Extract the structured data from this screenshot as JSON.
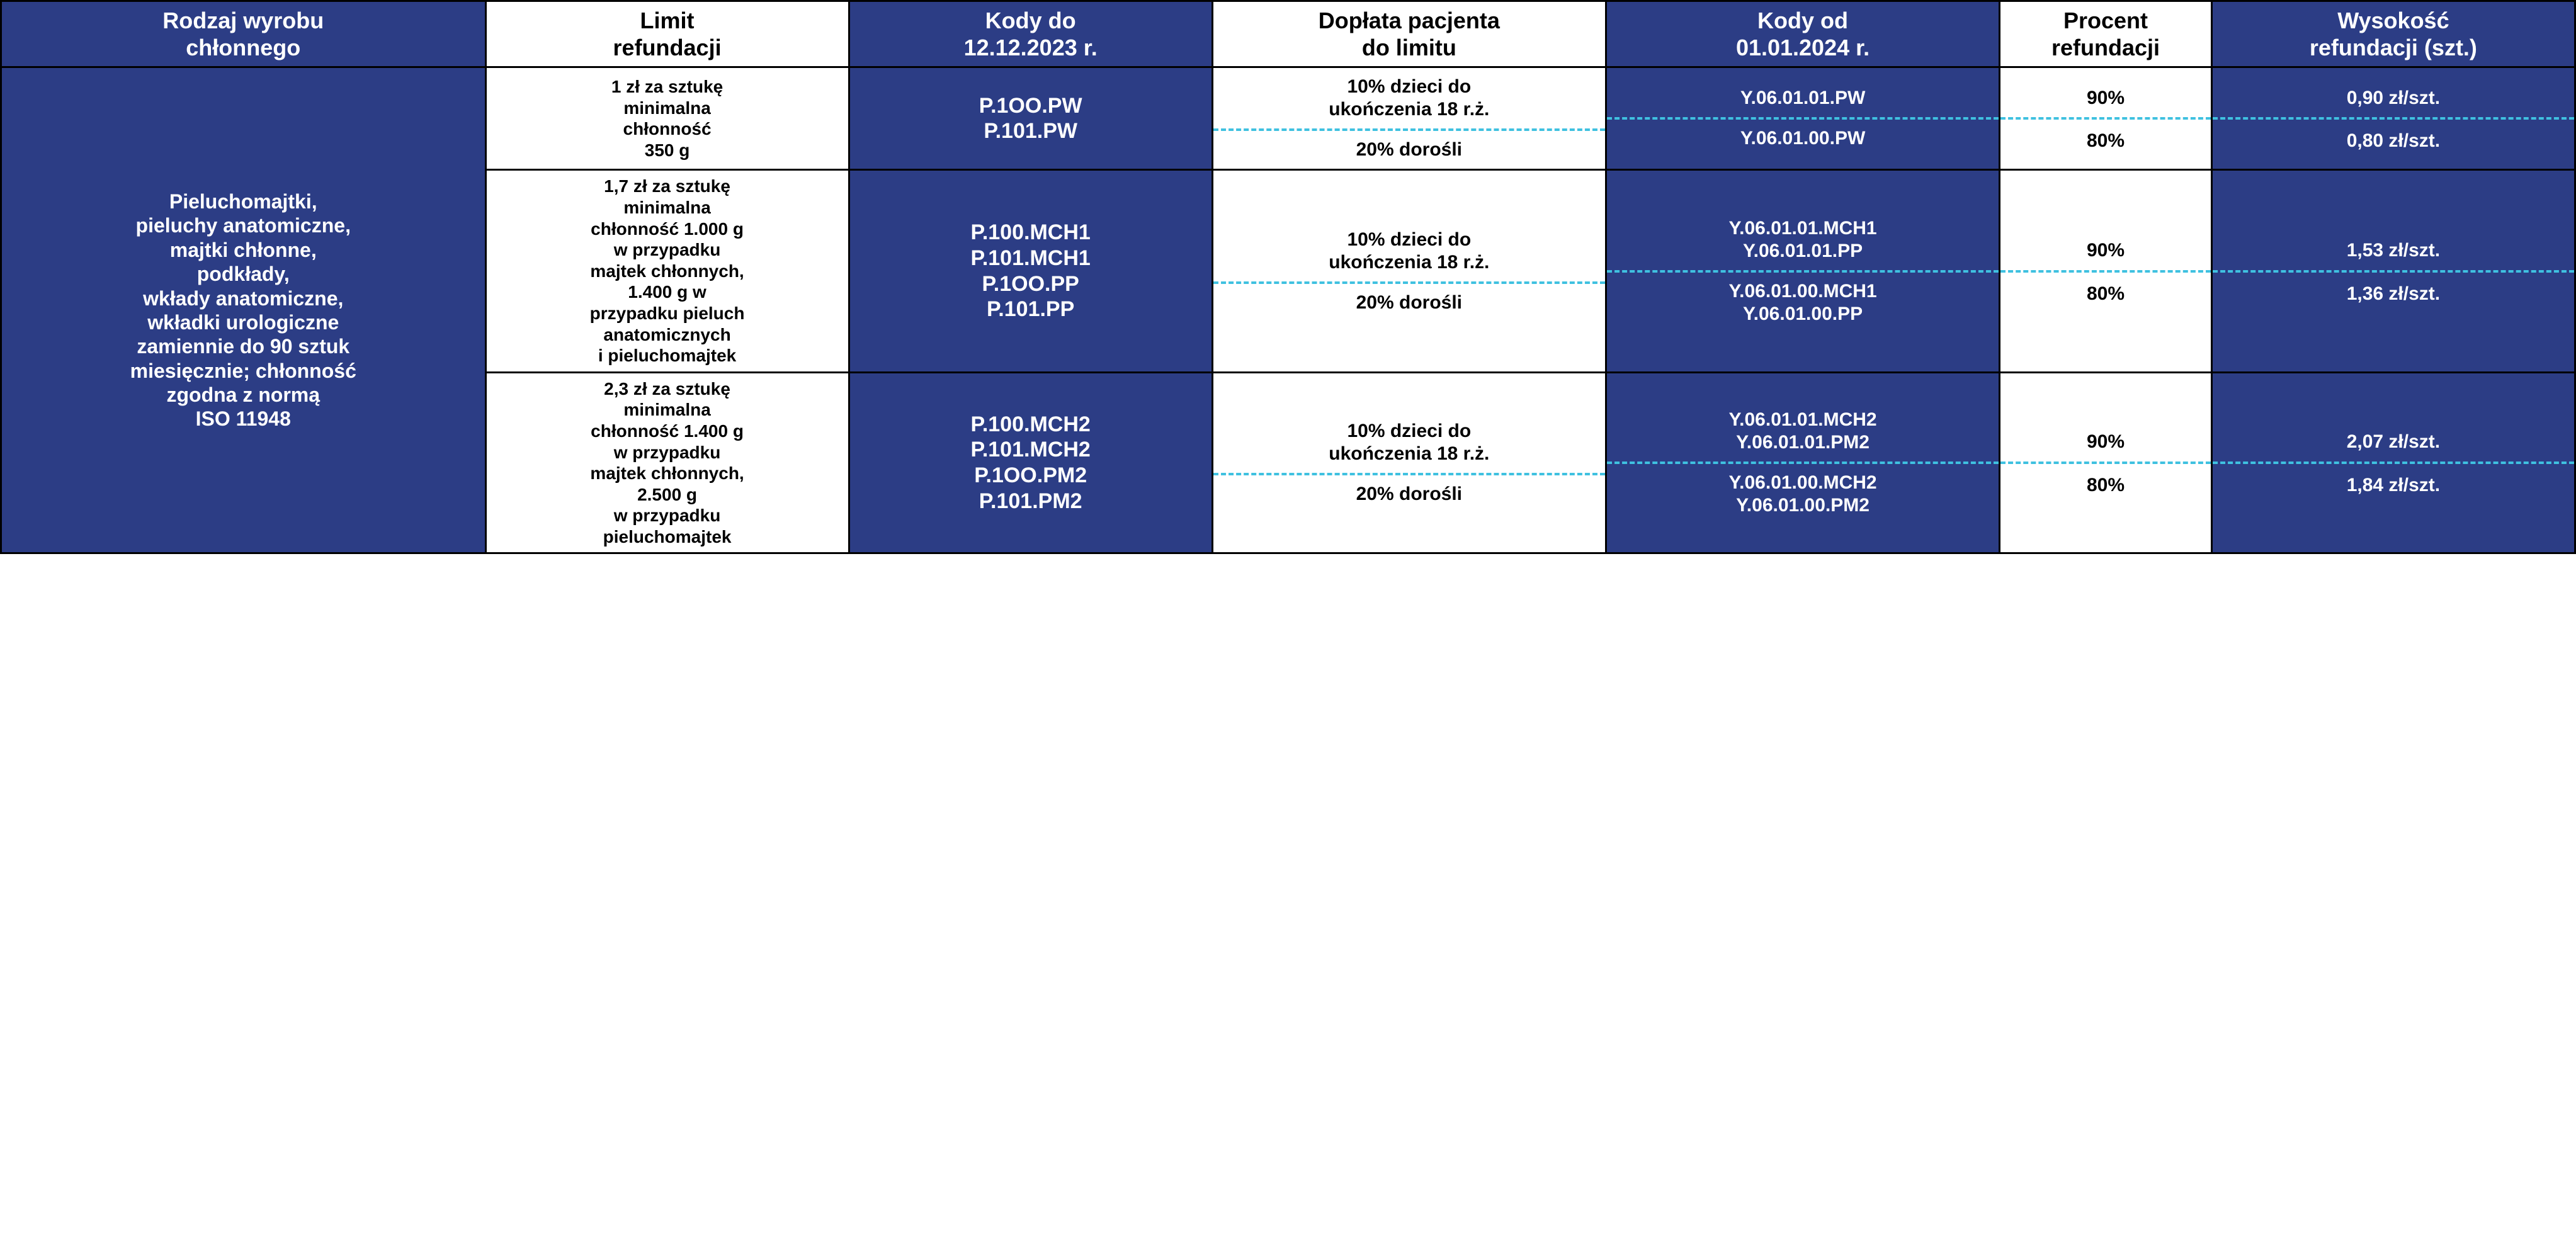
{
  "colors": {
    "blue": "#2c3d85",
    "dash": "#3fc1e0",
    "black": "#000000",
    "white": "#ffffff"
  },
  "colwidths_pct": [
    16,
    12,
    12,
    13,
    13,
    7,
    12
  ],
  "headers": [
    {
      "text": "Rodzaj wyrobu\nchłonnego",
      "style": "blue"
    },
    {
      "text": "Limit\nrefundacji",
      "style": "white"
    },
    {
      "text": "Kody do\n12.12.2023 r.",
      "style": "blue"
    },
    {
      "text": "Dopłata pacjenta\ndo limitu",
      "style": "white"
    },
    {
      "text": "Kody od\n01.01.2024 r.",
      "style": "blue"
    },
    {
      "text": "Procent\nrefundacji",
      "style": "white"
    },
    {
      "text": "Wysokość\nrefundacji (szt.)",
      "style": "blue"
    }
  ],
  "product_type": "Pieluchomajtki,\npieluchy anatomiczne,\nmajtki chłonne,\npodkłady,\nwkłady anatomiczne,\nwkładki urologiczne\nzamiennie do 90 sztuk\nmiesięcznie; chłonność\nzgodna z normą\nISO 11948",
  "groups": [
    {
      "limit": "1 zł za sztukę\nminimalna\nchłonność\n350 g",
      "codes_old": "P.1OO.PW\nP.101.PW",
      "rows": [
        {
          "doplata": "10% dzieci do\nukończenia 18 r.ż.",
          "codes_new": "Y.06.01.01.PW",
          "percent": "90%",
          "amount": "0,90 zł/szt."
        },
        {
          "doplata": "20% dorośli",
          "codes_new": "Y.06.01.00.PW",
          "percent": "80%",
          "amount": "0,80 zł/szt."
        }
      ]
    },
    {
      "limit": "1,7 zł za sztukę\nminimalna\nchłonność 1.000 g\nw przypadku\nmajtek chłonnych,\n1.400 g w\nprzypadku pieluch\nanatomicznych\ni pieluchomajtek",
      "codes_old": "P.100.MCH1\nP.101.MCH1\nP.1OO.PP\nP.101.PP",
      "rows": [
        {
          "doplata": "10% dzieci do\nukończenia 18 r.ż.",
          "codes_new": "Y.06.01.01.MCH1\nY.06.01.01.PP",
          "percent": "90%",
          "amount": "1,53 zł/szt."
        },
        {
          "doplata": "20% dorośli",
          "codes_new": "Y.06.01.00.MCH1\nY.06.01.00.PP",
          "percent": "80%",
          "amount": "1,36 zł/szt."
        }
      ]
    },
    {
      "limit": "2,3 zł za sztukę\nminimalna\nchłonność 1.400 g\nw przypadku\nmajtek chłonnych,\n2.500 g\nw przypadku\npieluchomajtek",
      "codes_old": "P.100.MCH2\nP.101.MCH2\nP.1OO.PM2\nP.101.PM2",
      "rows": [
        {
          "doplata": "10% dzieci do\nukończenia 18 r.ż.",
          "codes_new": "Y.06.01.01.MCH2\nY.06.01.01.PM2",
          "percent": "90%",
          "amount": "2,07 zł/szt."
        },
        {
          "doplata": "20% dorośli",
          "codes_new": "Y.06.01.00.MCH2\nY.06.01.00.PM2",
          "percent": "80%",
          "amount": "1,84 zł/szt."
        }
      ]
    }
  ]
}
